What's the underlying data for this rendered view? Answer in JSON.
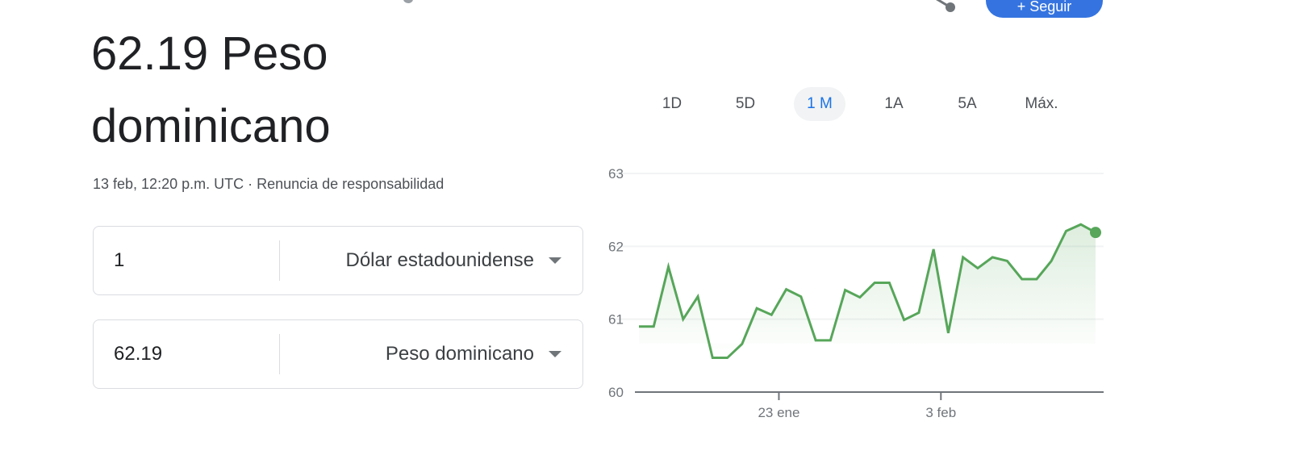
{
  "header": {
    "follow_label": "+ Seguir",
    "share_icon": "share-icon"
  },
  "result": {
    "title": "62.19 Peso dominicano",
    "subtitle_time": "13 feb, 12:20 p.m. UTC",
    "subtitle_sep": " · ",
    "disclaimer": "Renuncia de responsabilidad"
  },
  "converter": {
    "from": {
      "amount": "1",
      "currency": "Dólar estadounidense"
    },
    "to": {
      "amount": "62.19",
      "currency": "Peso dominicano"
    }
  },
  "range_tabs": [
    {
      "label": "1D",
      "selected": false
    },
    {
      "label": "5D",
      "selected": false
    },
    {
      "label": "1 M",
      "selected": true
    },
    {
      "label": "1A",
      "selected": false
    },
    {
      "label": "5A",
      "selected": false
    },
    {
      "label": "Máx.",
      "selected": false
    }
  ],
  "colors": {
    "line": "#57a65a",
    "accent": "#1a73e8",
    "button": "#3574e0"
  },
  "chart_data": {
    "type": "area",
    "ylim": [
      60,
      63
    ],
    "y_ticks": [
      "60",
      "61",
      "62",
      "63"
    ],
    "x_ticks": [
      {
        "label": "23 ene",
        "index": 9.5
      },
      {
        "label": "3 feb",
        "index": 20.5
      }
    ],
    "grid": true,
    "values": [
      60.9,
      60.9,
      61.72,
      61.0,
      61.31,
      60.47,
      60.47,
      60.66,
      61.15,
      61.06,
      61.41,
      61.31,
      60.71,
      60.71,
      61.4,
      61.3,
      61.5,
      61.5,
      60.99,
      61.09,
      61.96,
      60.81,
      61.85,
      61.7,
      61.85,
      61.8,
      61.55,
      61.55,
      61.8,
      62.21,
      62.3,
      62.19
    ]
  }
}
